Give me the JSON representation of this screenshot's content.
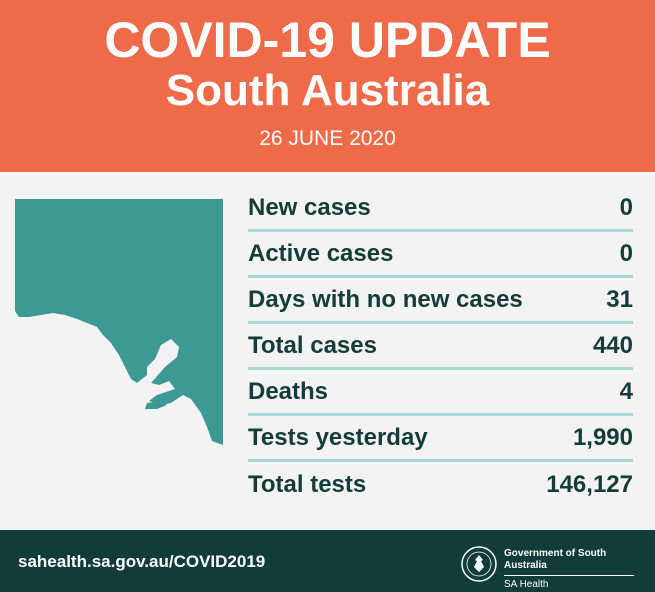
{
  "header": {
    "title": "COVID-19 UPDATE",
    "region": "South Australia",
    "date": "26 JUNE 2020"
  },
  "stats": [
    {
      "label": "New cases",
      "value": "0"
    },
    {
      "label": "Active cases",
      "value": "0"
    },
    {
      "label": "Days with no new cases",
      "value": "31"
    },
    {
      "label": "Total cases",
      "value": "440"
    },
    {
      "label": "Deaths",
      "value": "4"
    },
    {
      "label": "Tests yesterday",
      "value": "1,990"
    },
    {
      "label": "Total tests",
      "value": "146,127"
    }
  ],
  "footer": {
    "url": "sahealth.sa.gov.au/COVID2019",
    "government": "Government of South Australia",
    "department": "SA Health"
  },
  "colors": {
    "banner": "#ee6a48",
    "map": "#3d9994",
    "text_dark": "#133c3a",
    "divider": "#a9d7d6",
    "footer": "#113c38"
  },
  "icons": {
    "map": "south-australia-map",
    "crest": "south-australia-crest"
  }
}
